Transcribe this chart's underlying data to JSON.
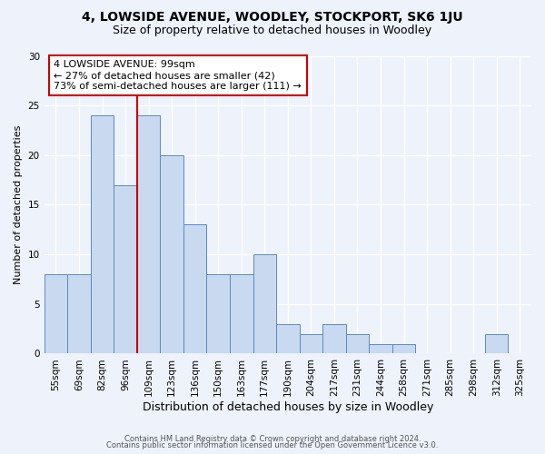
{
  "title": "4, LOWSIDE AVENUE, WOODLEY, STOCKPORT, SK6 1JU",
  "subtitle": "Size of property relative to detached houses in Woodley",
  "xlabel": "Distribution of detached houses by size in Woodley",
  "ylabel": "Number of detached properties",
  "footer_lines": [
    "Contains HM Land Registry data © Crown copyright and database right 2024.",
    "Contains public sector information licensed under the Open Government Licence v3.0."
  ],
  "bin_labels": [
    "55sqm",
    "69sqm",
    "82sqm",
    "96sqm",
    "109sqm",
    "123sqm",
    "136sqm",
    "150sqm",
    "163sqm",
    "177sqm",
    "190sqm",
    "204sqm",
    "217sqm",
    "231sqm",
    "244sqm",
    "258sqm",
    "271sqm",
    "285sqm",
    "298sqm",
    "312sqm",
    "325sqm"
  ],
  "bar_heights": [
    8,
    8,
    24,
    17,
    24,
    20,
    13,
    8,
    8,
    10,
    3,
    2,
    3,
    2,
    1,
    1,
    0,
    0,
    0,
    2,
    0
  ],
  "bar_color": "#c8d9f0",
  "bar_edge_color": "#5a8ac6",
  "vline_index": 3,
  "annotation_box_text": "4 LOWSIDE AVENUE: 99sqm\n← 27% of detached houses are smaller (42)\n73% of semi-detached houses are larger (111) →",
  "annotation_box_edge_color": "#cc0000",
  "vline_color": "#cc0000",
  "ylim": [
    0,
    30
  ],
  "yticks": [
    0,
    5,
    10,
    15,
    20,
    25,
    30
  ],
  "background_color": "#edf2fb",
  "plot_bg_color": "#edf2fb",
  "grid_color": "#ffffff",
  "title_fontsize": 10,
  "subtitle_fontsize": 9,
  "xlabel_fontsize": 9,
  "ylabel_fontsize": 8,
  "tick_fontsize": 7.5
}
